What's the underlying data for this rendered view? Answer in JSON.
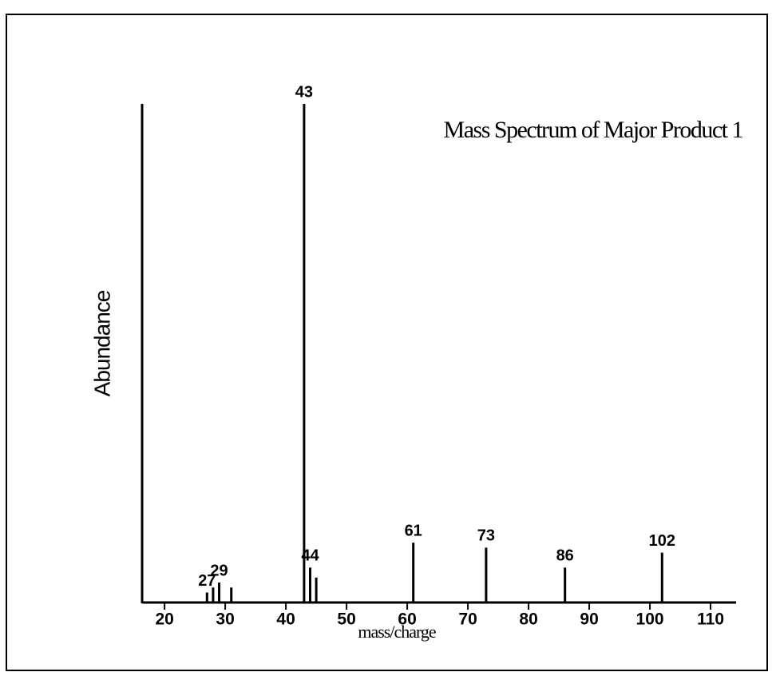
{
  "chart_data": {
    "type": "bar",
    "title": "Mass Spectrum of Major Product 1",
    "x_label": "mass/charge",
    "y_label": "Abundance",
    "x": [
      27,
      28,
      29,
      31,
      43,
      44,
      45,
      61,
      73,
      86,
      102
    ],
    "values": [
      2,
      3,
      4,
      3,
      100,
      7,
      5,
      12,
      11,
      7,
      10
    ],
    "peak_labels": [
      27,
      29,
      43,
      44,
      61,
      73,
      86,
      102
    ],
    "color": "#000000",
    "xlim": [
      16.3,
      114.2
    ],
    "xticks": [
      20,
      30,
      40,
      50,
      60,
      70,
      80,
      90,
      100,
      110
    ],
    "ylim": [
      0,
      100
    ],
    "grid": false
  }
}
